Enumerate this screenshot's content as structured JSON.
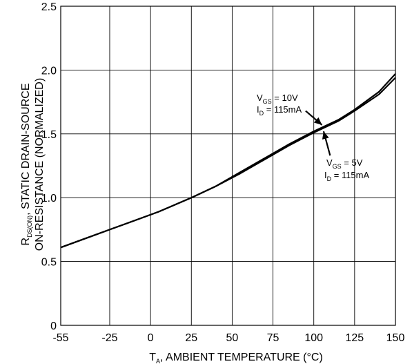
{
  "chart_data": {
    "type": "line",
    "xlabel": {
      "main": "T",
      "sub": "A",
      "rest": ", AMBIENT TEMPERATURE (°C)"
    },
    "ylabel": {
      "line1": {
        "main": "R",
        "sub": "DS(ON)",
        "rest": ", STATIC DRAIN-SOURCE"
      },
      "line2": "ON-RESISTANCE (NORMALIZED)"
    },
    "xlim": [
      -55,
      150
    ],
    "ylim": [
      0,
      2.5
    ],
    "x_ticks": [
      -55,
      -25,
      0,
      25,
      50,
      75,
      100,
      125,
      150
    ],
    "x_tick_labels": [
      "-55",
      "-25",
      "0",
      "25",
      "50",
      "75",
      "100",
      "125",
      "150"
    ],
    "y_ticks": [
      0,
      0.5,
      1.0,
      1.5,
      2.0,
      2.5
    ],
    "y_tick_labels": [
      "0",
      "0.5",
      "1.0",
      "1.5",
      "2.0",
      "2.5"
    ],
    "grid": true,
    "series": [
      {
        "x": [
          -55,
          -40,
          -25,
          -10,
          5,
          25,
          40,
          55,
          70,
          85,
          100,
          115,
          125,
          140,
          150
        ],
        "y": [
          0.61,
          0.68,
          0.75,
          0.82,
          0.89,
          1.0,
          1.09,
          1.2,
          1.31,
          1.42,
          1.52,
          1.61,
          1.69,
          1.83,
          1.97
        ]
      },
      {
        "x": [
          -55,
          -40,
          -25,
          -10,
          5,
          25,
          40,
          55,
          70,
          85,
          100,
          115,
          125,
          140,
          150
        ],
        "y": [
          0.61,
          0.68,
          0.75,
          0.82,
          0.89,
          1.0,
          1.09,
          1.19,
          1.3,
          1.41,
          1.51,
          1.6,
          1.68,
          1.81,
          1.94
        ]
      }
    ],
    "annotations": [
      {
        "line1_main": "V",
        "line1_sub": "GS",
        "line1_rest": " = 10V",
        "line2_main": "I",
        "line2_sub": "D",
        "line2_rest": " = 115mA",
        "arrow_from": [
          95,
          1.68
        ],
        "arrow_to": [
          105,
          1.57
        ]
      },
      {
        "line1_main": "V",
        "line1_sub": "GS",
        "line1_rest": " = 5V",
        "line2_main": "I",
        "line2_sub": "D",
        "line2_rest": " = 115mA",
        "arrow_from": [
          110,
          1.33
        ],
        "arrow_to": [
          106,
          1.52
        ]
      }
    ],
    "colors": {
      "line": "#000000",
      "grid": "#000000",
      "background": "#ffffff"
    }
  }
}
